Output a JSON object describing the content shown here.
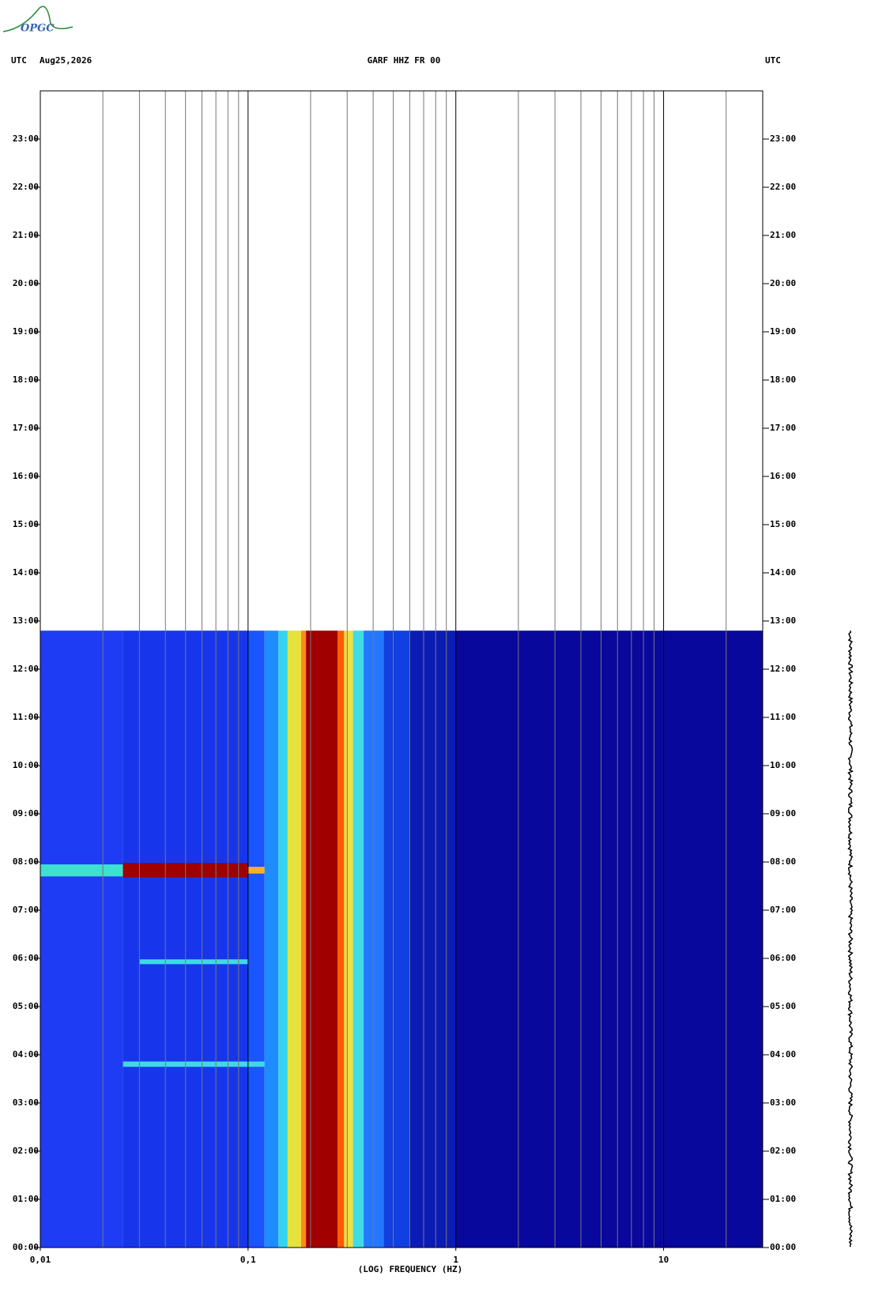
{
  "chart_data": {
    "type": "spectrogram",
    "logo": "OPGC",
    "left_label": "UTC",
    "date": "Aug25,2026",
    "title": "GARF HHZ FR 00",
    "right_label": "UTC",
    "x_label": "(LOG) FREQUENCY (HZ)",
    "x_log": true,
    "xlim": [
      0.01,
      30
    ],
    "xticks": [
      {
        "value": 0.01,
        "label": "0,01"
      },
      {
        "value": 0.1,
        "label": "0,1"
      },
      1,
      10
    ],
    "xgrid_minor": [
      0.02,
      0.03,
      0.04,
      0.05,
      0.06,
      0.07,
      0.08,
      0.09,
      0.2,
      0.3,
      0.4,
      0.5,
      0.6,
      0.7,
      0.8,
      0.9,
      2,
      3,
      4,
      5,
      6,
      7,
      8,
      9,
      20
    ],
    "ylim": [
      0,
      24
    ],
    "yticks": [
      {
        "value": 0,
        "label": "00:00"
      },
      {
        "value": 1,
        "label": "01:00"
      },
      {
        "value": 2,
        "label": "02:00"
      },
      {
        "value": 3,
        "label": "03:00"
      },
      {
        "value": 4,
        "label": "04:00"
      },
      {
        "value": 5,
        "label": "05:00"
      },
      {
        "value": 6,
        "label": "06:00"
      },
      {
        "value": 7,
        "label": "07:00"
      },
      {
        "value": 8,
        "label": "08:00"
      },
      {
        "value": 9,
        "label": "09:00"
      },
      {
        "value": 10,
        "label": "10:00"
      },
      {
        "value": 11,
        "label": "11:00"
      },
      {
        "value": 12,
        "label": "12:00"
      },
      {
        "value": 13,
        "label": "13:00"
      },
      {
        "value": 14,
        "label": "14:00"
      },
      {
        "value": 15,
        "label": "15:00"
      },
      {
        "value": 16,
        "label": "16:00"
      },
      {
        "value": 17,
        "label": "17:00"
      },
      {
        "value": 18,
        "label": "18:00"
      },
      {
        "value": 19,
        "label": "19:00"
      },
      {
        "value": 20,
        "label": "20:00"
      },
      {
        "value": 21,
        "label": "21:00"
      },
      {
        "value": 22,
        "label": "22:00"
      },
      {
        "value": 23,
        "label": "23:00"
      }
    ],
    "spectrogram": {
      "time_range": [
        0,
        12.8
      ],
      "freq_edges": [
        0.01,
        0.025,
        0.1,
        0.12,
        0.14,
        0.155,
        0.18,
        0.19,
        0.27,
        0.29,
        0.32,
        0.36,
        0.45,
        0.6,
        1,
        30
      ],
      "colors": [
        "#1f3cf5",
        "#1736ec",
        "#1a55ff",
        "#1e8cff",
        "#34d2ee",
        "#e6e23c",
        "#ff8a1c",
        "#a00000",
        "#ff5a00",
        "#f0e040",
        "#40dce6",
        "#2478ff",
        "#1040e0",
        "#0b1cb4",
        "#08089c"
      ]
    },
    "events": [
      {
        "time": [
          7.7,
          7.95
        ],
        "freq": [
          0.01,
          0.025
        ],
        "color": "#3ee0d0"
      },
      {
        "time": [
          7.68,
          7.98
        ],
        "freq": [
          0.025,
          0.1
        ],
        "color": "#a00000"
      },
      {
        "time": [
          7.76,
          7.9
        ],
        "freq": [
          0.1,
          0.12
        ],
        "color": "#ffb020"
      },
      {
        "time": [
          5.88,
          5.98
        ],
        "freq": [
          0.03,
          0.1
        ],
        "color": "#40d8e8"
      },
      {
        "time": [
          3.75,
          3.86
        ],
        "freq": [
          0.025,
          0.12
        ],
        "color": "#40d8e8"
      }
    ]
  }
}
